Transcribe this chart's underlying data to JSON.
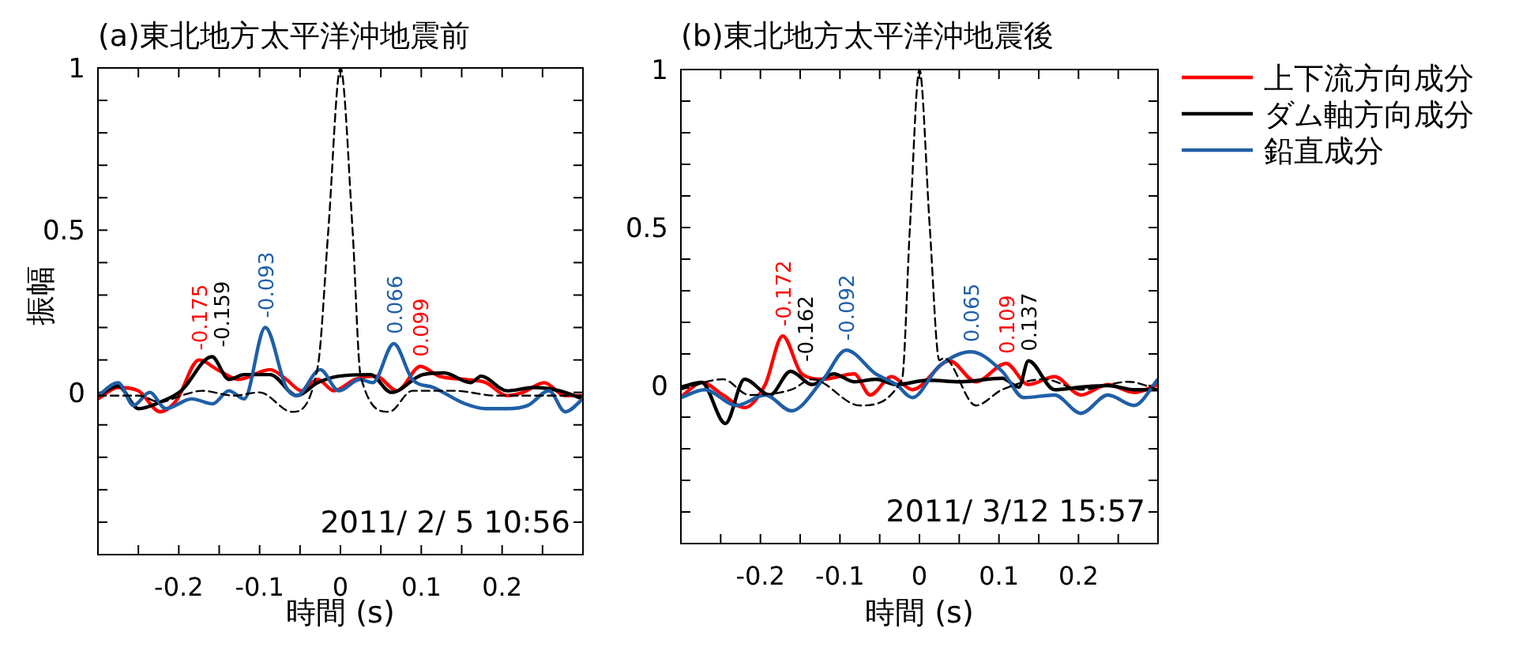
{
  "chart_data": [
    {
      "type": "line",
      "title": "(a)東北地方太平洋沖地震前",
      "xlabel": "時間 (s)",
      "ylabel": "振幅",
      "xlim": [
        -0.3,
        0.3
      ],
      "ylim": [
        -0.5,
        1
      ],
      "xticks": [
        {
          "value": -0.25,
          "label": null
        },
        -0.2,
        {
          "value": -0.15,
          "label": null
        },
        -0.1,
        {
          "value": -0.05,
          "label": null
        },
        0,
        {
          "value": 0.05,
          "label": null
        },
        0.1,
        {
          "value": 0.15,
          "label": null
        },
        0.2,
        {
          "value": 0.25,
          "label": null
        }
      ],
      "yticks": [
        {
          "value": -0.4,
          "label": null
        },
        {
          "value": -0.3,
          "label": null
        },
        {
          "value": -0.2,
          "label": null
        },
        {
          "value": -0.1,
          "label": null
        },
        0,
        {
          "value": 0.1,
          "label": null
        },
        {
          "value": 0.2,
          "label": null
        },
        {
          "value": 0.3,
          "label": null
        },
        {
          "value": 0.4,
          "label": null
        },
        0.5,
        {
          "value": 0.6,
          "label": null
        },
        {
          "value": 0.7,
          "label": null
        },
        {
          "value": 0.8,
          "label": null
        },
        {
          "value": 0.9,
          "label": null
        },
        1
      ],
      "annotations": [
        "2011/ 2/ 5 10:56",
        {
          "text": "-0.175",
          "x": -0.175,
          "y": 0.1
        },
        {
          "text": "-0.159",
          "x": -0.159,
          "y": 0.11
        },
        {
          "text": "-0.093",
          "x": -0.093,
          "y": 0.2
        },
        {
          "text": "0.066",
          "x": 0.066,
          "y": 0.15
        },
        {
          "text": "0.099",
          "x": 0.099,
          "y": 0.08
        }
      ],
      "series": [
        {
          "color": "#ff0000",
          "x": [
            -0.3,
            -0.275,
            -0.25,
            -0.223,
            -0.203,
            -0.175,
            -0.152,
            -0.126,
            -0.087,
            -0.067,
            -0.048,
            -0.028,
            -0.008,
            0.018,
            0.044,
            0.07,
            0.099,
            0.122,
            0.154,
            0.18,
            0.206,
            0.226,
            0.252,
            0.278,
            0.3
          ],
          "values": [
            -0.02,
            0.015,
            0.005,
            -0.06,
            -0.025,
            0.1,
            0.07,
            0.04,
            0.07,
            0.04,
            0.005,
            0.04,
            0.005,
            0.04,
            0.05,
            0.005,
            0.08,
            0.05,
            0.04,
            0.03,
            -0.01,
            0,
            0.03,
            -0.01,
            -0.01
          ]
        },
        {
          "color": "#000000",
          "x": [
            -0.3,
            -0.275,
            -0.25,
            -0.223,
            -0.197,
            -0.159,
            -0.138,
            -0.119,
            -0.087,
            -0.054,
            -0.028,
            -0.002,
            0.037,
            0.063,
            0.102,
            0.128,
            0.161,
            0.174,
            0.206,
            0.239,
            0.271,
            0.3
          ],
          "values": [
            -0.01,
            0.02,
            -0.05,
            -0.03,
            0.005,
            0.11,
            0.04,
            0.055,
            0.055,
            -0.01,
            0.03,
            0.05,
            0.055,
            0,
            0.055,
            0.06,
            0.03,
            0.05,
            0.005,
            0.015,
            0.005,
            -0.02
          ]
        },
        {
          "color": "#1f5fa8",
          "x": [
            -0.3,
            -0.275,
            -0.256,
            -0.236,
            -0.216,
            -0.184,
            -0.158,
            -0.138,
            -0.119,
            -0.093,
            -0.067,
            -0.054,
            -0.025,
            -0.002,
            0.024,
            0.04,
            0.066,
            0.089,
            0.115,
            0.154,
            0.18,
            0.206,
            0.232,
            0.258,
            0.278,
            0.3
          ],
          "values": [
            -0.01,
            0.03,
            -0.04,
            0,
            -0.05,
            -0.02,
            -0.035,
            0.005,
            -0.02,
            0.2,
            0.015,
            -0.01,
            0.07,
            0.005,
            0.04,
            0.03,
            0.15,
            0.04,
            0.015,
            -0.035,
            -0.05,
            -0.05,
            -0.04,
            0.005,
            -0.06,
            -0.02
          ]
        },
        {
          "color": "#000000",
          "line_style": "dashed",
          "x": [
            -0.3,
            -0.25,
            -0.223,
            -0.197,
            -0.171,
            -0.132,
            -0.1,
            -0.06,
            -0.028,
            -0.015,
            0,
            0.015,
            0.025,
            0.06,
            0.089,
            0.141,
            0.193,
            0.239,
            0.3
          ],
          "values": [
            -0.01,
            -0.01,
            -0.03,
            -0.01,
            0.005,
            -0.01,
            0,
            -0.06,
            0.08,
            0.5,
            1,
            0.5,
            0.05,
            -0.06,
            0.005,
            0.005,
            -0.01,
            -0.01,
            -0.01
          ]
        }
      ]
    },
    {
      "type": "line",
      "title": "(b)東北地方太平洋沖地震後",
      "xlabel": "時間 (s)",
      "xlim": [
        -0.3,
        0.3
      ],
      "ylim": [
        -0.5,
        1
      ],
      "legend": "right",
      "xticks": [
        {
          "value": -0.25,
          "label": null
        },
        -0.2,
        {
          "value": -0.15,
          "label": null
        },
        -0.1,
        {
          "value": -0.05,
          "label": null
        },
        0,
        {
          "value": 0.05,
          "label": null
        },
        0.1,
        {
          "value": 0.15,
          "label": null
        },
        0.2,
        {
          "value": 0.25,
          "label": null
        }
      ],
      "yticks": [
        {
          "value": -0.4,
          "label": null
        },
        {
          "value": -0.3,
          "label": null
        },
        {
          "value": -0.2,
          "label": null
        },
        {
          "value": -0.1,
          "label": null
        },
        0,
        {
          "value": 0.1,
          "label": null
        },
        {
          "value": 0.2,
          "label": null
        },
        {
          "value": 0.3,
          "label": null
        },
        {
          "value": 0.4,
          "label": null
        },
        0.5,
        {
          "value": 0.6,
          "label": null
        },
        {
          "value": 0.7,
          "label": null
        },
        {
          "value": 0.8,
          "label": null
        },
        {
          "value": 0.9,
          "label": null
        },
        1
      ],
      "annotations": [
        "2011/ 3/12 15:57",
        {
          "text": "-0.172",
          "x": -0.172,
          "y": 0.157
        },
        {
          "text": "-0.162",
          "x": -0.162,
          "y": 0.045
        },
        {
          "text": "-0.092",
          "x": -0.092,
          "y": 0.112
        },
        {
          "text": "0.065",
          "x": 0.065,
          "y": 0.107
        },
        {
          "text": "0.109",
          "x": 0.109,
          "y": 0.07
        },
        {
          "text": "0.137",
          "x": 0.137,
          "y": 0.078
        }
      ],
      "series": [
        {
          "name": "上下流方向成分",
          "color": "#ff0000",
          "x": [
            -0.297,
            -0.274,
            -0.247,
            -0.22,
            -0.194,
            -0.172,
            -0.148,
            -0.121,
            -0.082,
            -0.062,
            -0.035,
            -0.009,
            0.038,
            0.071,
            0.109,
            0.137,
            0.17,
            0.203,
            0.237,
            0.27,
            0.3
          ],
          "values": [
            -0.03,
            0.01,
            -0.03,
            -0.07,
            0.003,
            0.157,
            0.037,
            0.02,
            0.037,
            -0.03,
            0.028,
            -0.013,
            0.078,
            0.012,
            0.07,
            0.003,
            0.028,
            -0.03,
            0.003,
            -0.022,
            0.003
          ]
        },
        {
          "name": "ダム軸方向成分",
          "color": "#000000",
          "x": [
            -0.3,
            -0.274,
            -0.244,
            -0.22,
            -0.188,
            -0.162,
            -0.135,
            -0.108,
            -0.082,
            -0.055,
            -0.029,
            0.011,
            0.051,
            0.104,
            0.125,
            0.137,
            0.17,
            0.203,
            0.237,
            0.27,
            0.3
          ],
          "values": [
            -0.005,
            0.01,
            -0.12,
            0.02,
            -0.03,
            0.045,
            0.003,
            0.037,
            0.012,
            0.02,
            0.003,
            0.017,
            0.012,
            0.023,
            -0.005,
            0.078,
            -0.013,
            -0.005,
            0,
            -0.013,
            -0.013
          ]
        },
        {
          "name": "鉛直成分",
          "color": "#1f5fa8",
          "x": [
            -0.3,
            -0.27,
            -0.23,
            -0.194,
            -0.161,
            -0.121,
            -0.092,
            -0.055,
            -0.029,
            -0.009,
            0.025,
            0.065,
            0.104,
            0.131,
            0.17,
            0.203,
            0.237,
            0.27,
            0.3
          ],
          "values": [
            -0.038,
            -0.013,
            -0.063,
            -0.03,
            -0.08,
            0.02,
            0.112,
            0.037,
            0.003,
            -0.038,
            0.062,
            0.107,
            0.045,
            -0.038,
            -0.03,
            -0.088,
            -0.03,
            -0.063,
            0.02
          ]
        },
        {
          "color": "#000000",
          "line_style": "dashed",
          "x": [
            -0.3,
            -0.247,
            -0.214,
            -0.161,
            -0.135,
            -0.075,
            -0.022,
            -0.012,
            0,
            0.013,
            0.025,
            0.031,
            0.071,
            0.104,
            0.157,
            0.203,
            0.263,
            0.3
          ],
          "values": [
            -0.013,
            0.02,
            -0.03,
            -0.013,
            0.02,
            -0.063,
            0.02,
            0.5,
            1,
            0.5,
            0.08,
            0.087,
            -0.063,
            -0.013,
            0.02,
            -0.013,
            0.012,
            -0.013
          ]
        }
      ]
    }
  ]
}
